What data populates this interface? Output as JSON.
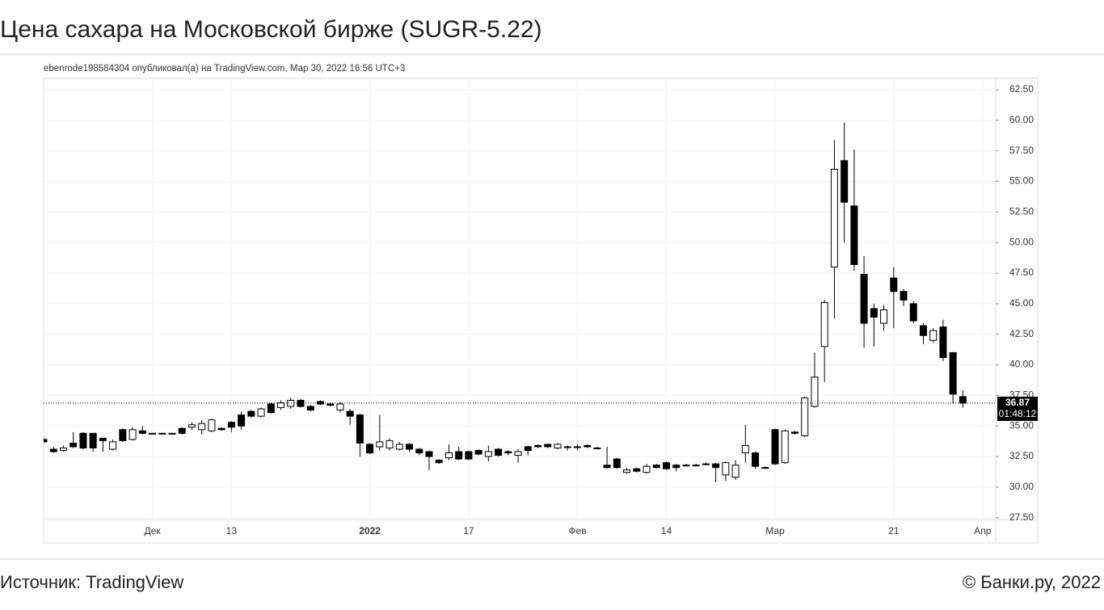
{
  "header": {
    "title": "Цена сахара на Московской бирже (SUGR-5.22)"
  },
  "chart_data": {
    "type": "candlestick",
    "subtitle": "ebenrode198584304 опубликовал(а) на TradingView.com, Мар 30, 2022 16:56 UTC+3",
    "up_color": "#ffffff",
    "down_color": "#000000",
    "grid": true,
    "ylim": [
      27.35,
      63.43
    ],
    "yticks": [
      {
        "value": 27.5,
        "label": "27.50"
      },
      {
        "value": 30,
        "label": "30.00"
      },
      {
        "value": 32.5,
        "label": "32.50"
      },
      {
        "value": 35,
        "label": "35.00"
      },
      {
        "value": 37.5,
        "label": "37.50"
      },
      {
        "value": 40,
        "label": "40.00"
      },
      {
        "value": 42.5,
        "label": "42.50"
      },
      {
        "value": 45,
        "label": "45.00"
      },
      {
        "value": 47.5,
        "label": "47.50"
      },
      {
        "value": 50,
        "label": "50.00"
      },
      {
        "value": 52.5,
        "label": "52.50"
      },
      {
        "value": 55,
        "label": "55.00"
      },
      {
        "value": 57.5,
        "label": "57.50"
      },
      {
        "value": 60,
        "label": "60.00"
      },
      {
        "value": 62.5,
        "label": "62.50"
      }
    ],
    "xticks": [
      {
        "value": 11,
        "label": "Дек"
      },
      {
        "value": 19,
        "label": "13"
      },
      {
        "value": 33,
        "label": "2022"
      },
      {
        "value": 43,
        "label": "17"
      },
      {
        "value": 54,
        "label": "Фев"
      },
      {
        "value": 63,
        "label": "14"
      },
      {
        "value": 74,
        "label": "Мар"
      },
      {
        "value": 86,
        "label": "21"
      },
      {
        "value": 95,
        "label": "Апр"
      }
    ],
    "last_price": 36.87,
    "countdown": "01:48:12",
    "series": [
      {
        "open": [
          33.9,
          33.1,
          33.0,
          33.6,
          34.4,
          34.4,
          34.0,
          33.1,
          34.7,
          33.9,
          34.6,
          34.4,
          34.4,
          34.4,
          34.8,
          34.9,
          34.7,
          34.6,
          34.8,
          35.3,
          35.9,
          36.2,
          35.8,
          36.8,
          36.5,
          36.6,
          37.1,
          36.6,
          37.0,
          36.8,
          36.3,
          36.2,
          35.9,
          33.5,
          33.3,
          33.2,
          33.1,
          33.5,
          33.1,
          32.9,
          32.2,
          32.4,
          32.9,
          32.9,
          33.0,
          32.5,
          33.1,
          32.9,
          32.6,
          33.3,
          33.4,
          33.5,
          33.2,
          33.3,
          33.3,
          33.4,
          33.2,
          31.8,
          32.3,
          31.2,
          31.5,
          31.2,
          31.8,
          32.0,
          31.8,
          31.8,
          31.8,
          31.9,
          31.9,
          31.0,
          30.8,
          32.8,
          32.8,
          31.6,
          34.7,
          32.0,
          34.5,
          34.2,
          36.6,
          41.5,
          48.0,
          56.7,
          53.0,
          47.4,
          44.6,
          43.4,
          47.1,
          46.0,
          45.0,
          43.2,
          42.0,
          43.1,
          41.0,
          37.4
        ],
        "high": [
          34.0,
          33.3,
          33.4,
          34.5,
          34.5,
          34.4,
          34.0,
          33.9,
          34.8,
          34.9,
          35.0,
          34.4,
          34.4,
          34.4,
          34.9,
          35.3,
          35.5,
          35.6,
          34.9,
          35.4,
          36.2,
          36.3,
          36.5,
          36.9,
          37.1,
          37.3,
          37.2,
          36.7,
          37.1,
          36.9,
          37.0,
          36.4,
          36.0,
          33.6,
          35.9,
          34.0,
          33.7,
          33.6,
          33.2,
          33.0,
          32.3,
          33.5,
          33.3,
          33.0,
          33.1,
          33.4,
          33.2,
          33.0,
          33.1,
          33.4,
          33.5,
          33.5,
          33.6,
          33.4,
          33.5,
          33.5,
          33.3,
          33.3,
          32.4,
          31.6,
          31.6,
          31.9,
          31.9,
          32.1,
          31.9,
          31.9,
          31.9,
          32.0,
          32.0,
          32.1,
          32.2,
          35.1,
          32.9,
          31.7,
          34.8,
          34.7,
          34.6,
          37.4,
          41.0,
          45.3,
          58.4,
          59.8,
          57.6,
          48.9,
          45.0,
          44.9,
          48.0,
          46.2,
          45.2,
          43.4,
          43.0,
          43.7,
          41.0,
          37.9
        ],
        "low": [
          33.6,
          32.8,
          32.9,
          33.2,
          33.1,
          32.9,
          32.9,
          33.0,
          33.7,
          33.8,
          34.3,
          34.4,
          34.4,
          34.4,
          34.3,
          34.7,
          34.3,
          34.5,
          34.6,
          34.5,
          34.7,
          35.7,
          35.7,
          36.0,
          36.3,
          36.4,
          36.5,
          36.2,
          36.7,
          36.6,
          36.1,
          35.1,
          32.5,
          32.7,
          33.0,
          33.0,
          33.0,
          32.9,
          32.6,
          31.4,
          31.9,
          32.2,
          32.2,
          32.2,
          32.6,
          32.1,
          32.5,
          32.6,
          32.0,
          32.6,
          33.2,
          33.2,
          33.1,
          33.0,
          33.0,
          33.2,
          33.1,
          31.5,
          31.5,
          31.1,
          31.2,
          31.1,
          31.5,
          31.4,
          31.3,
          31.7,
          31.7,
          31.8,
          30.4,
          30.5,
          30.6,
          32.0,
          31.5,
          31.5,
          31.8,
          31.9,
          34.3,
          34.1,
          36.5,
          38.6,
          43.8,
          50.0,
          47.7,
          41.4,
          41.5,
          42.8,
          43.0,
          44.8,
          43.4,
          41.7,
          41.8,
          40.3,
          36.8,
          36.5
        ],
        "close": [
          33.7,
          32.9,
          33.2,
          33.3,
          33.2,
          33.2,
          33.8,
          33.7,
          33.8,
          34.7,
          34.4,
          34.4,
          34.4,
          34.4,
          34.4,
          35.1,
          35.2,
          35.5,
          34.7,
          34.9,
          35.0,
          35.8,
          36.4,
          36.1,
          36.9,
          37.1,
          36.6,
          36.3,
          36.8,
          36.7,
          36.8,
          35.8,
          33.6,
          32.8,
          33.7,
          33.8,
          33.5,
          33.1,
          32.8,
          32.5,
          32.0,
          32.8,
          32.3,
          32.3,
          32.7,
          32.9,
          32.6,
          32.8,
          32.9,
          33.0,
          33.3,
          33.3,
          33.5,
          33.3,
          33.3,
          33.3,
          33.2,
          31.6,
          31.6,
          31.4,
          31.3,
          31.7,
          31.6,
          31.5,
          31.6,
          31.8,
          31.8,
          31.9,
          31.6,
          32.0,
          31.8,
          33.4,
          31.7,
          31.6,
          31.9,
          34.6,
          34.4,
          37.3,
          39.0,
          45.1,
          56.0,
          53.3,
          48.2,
          43.4,
          43.9,
          44.5,
          46.0,
          45.3,
          43.6,
          42.4,
          42.8,
          40.6,
          37.6,
          36.87
        ]
      }
    ]
  },
  "footer": {
    "source": "Источник: TradingView",
    "copyright": "© Банки.ру, 2022"
  }
}
